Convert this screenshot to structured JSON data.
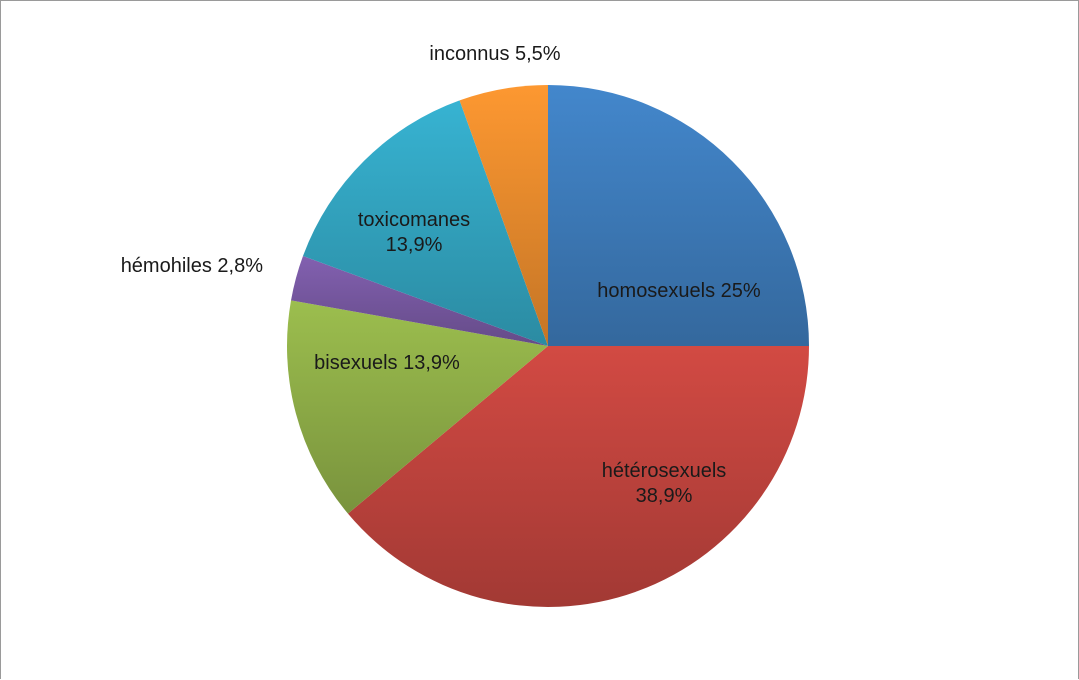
{
  "chart_data": {
    "type": "pie",
    "title": "",
    "start_angle_deg": 0,
    "direction": "clockwise",
    "legend": "none",
    "slices": [
      {
        "name": "homosexuels",
        "value": 25.0,
        "label_lines": [
          "homosexuels 25%"
        ],
        "color": "#3f7fc0"
      },
      {
        "name": "hétérosexuels",
        "value": 38.9,
        "label_lines": [
          "hétérosexuels",
          "38,9%"
        ],
        "color": "#c6463f"
      },
      {
        "name": "bisexuels",
        "value": 13.9,
        "label_lines": [
          "bisexuels 13,9%"
        ],
        "color": "#93b34a"
      },
      {
        "name": "hémohiles",
        "value": 2.8,
        "label_lines": [
          "hémohiles 2,8%"
        ],
        "color": "#7b5ba6"
      },
      {
        "name": "toxicomanes",
        "value": 13.9,
        "label_lines": [
          "toxicomanes",
          "13,9%"
        ],
        "color": "#34a9c6"
      },
      {
        "name": "inconnus",
        "value": 5.5,
        "label_lines": [
          "inconnus 5,5%"
        ],
        "color": "#ef8f2e"
      }
    ]
  }
}
